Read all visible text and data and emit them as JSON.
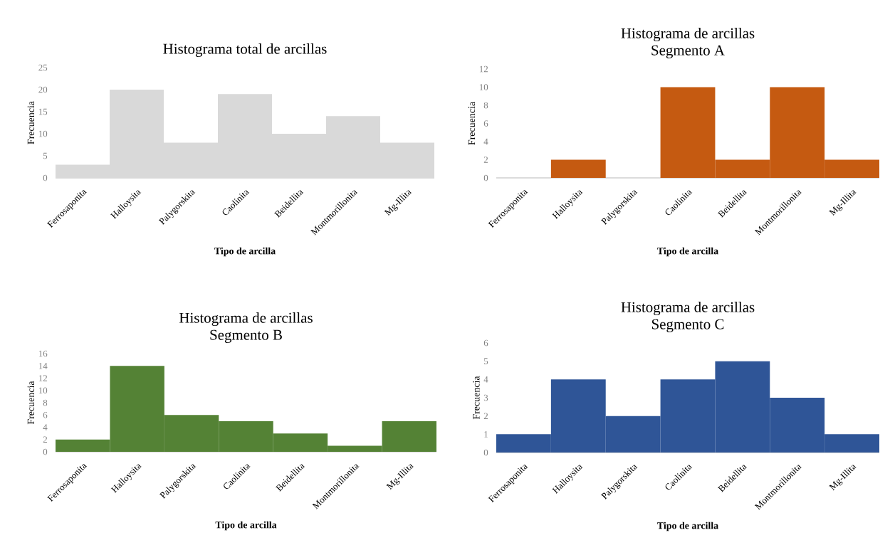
{
  "chart_data": [
    {
      "type": "bar",
      "title": "Histograma total de arcillas",
      "xlabel": "Tipo de arcilla",
      "ylabel": "Frecuencia",
      "categories": [
        "Ferrosaponita",
        "Halloysita",
        "Palygorskita",
        "Caolinita",
        "Beidellita",
        "Montmorillonita",
        "Mg-Illita"
      ],
      "values": [
        3,
        20,
        8,
        19,
        10,
        14,
        8
      ],
      "color": "#d9d9d9",
      "ylim": [
        0,
        25
      ],
      "yticks": [
        0,
        5,
        10,
        15,
        20,
        25
      ]
    },
    {
      "type": "bar",
      "title": "Histograma de arcillas",
      "subtitle": "Segmento A",
      "xlabel": "Tipo de arcilla",
      "ylabel": "Frecuencia",
      "categories": [
        "Ferrosaponita",
        "Halloysita",
        "Palygorskita",
        "Caolinita",
        "Beidellita",
        "Montmorillonita",
        "Mg-Illita"
      ],
      "values": [
        0,
        2,
        0,
        10,
        2,
        10,
        2
      ],
      "color": "#c55a11",
      "ylim": [
        0,
        12
      ],
      "yticks": [
        0,
        2,
        4,
        6,
        8,
        10,
        12
      ]
    },
    {
      "type": "bar",
      "title": "Histograma de arcillas",
      "subtitle": "Segmento B",
      "xlabel": "Tipo de arcilla",
      "ylabel": "Frecuencia",
      "categories": [
        "Ferrosaponita",
        "Halloysita",
        "Palygorskita",
        "Caolinita",
        "Beidellita",
        "Montmorillonita",
        "Mg-Illita"
      ],
      "values": [
        2,
        14,
        6,
        5,
        3,
        1,
        5
      ],
      "color": "#548235",
      "ylim": [
        0,
        16
      ],
      "yticks": [
        0,
        2,
        4,
        6,
        8,
        10,
        12,
        14,
        16
      ]
    },
    {
      "type": "bar",
      "title": "Histograma de arcillas",
      "subtitle": "Segmento C",
      "xlabel": "Tipo de arcilla",
      "ylabel": "Frecuencia",
      "categories": [
        "Ferrosaponita",
        "Halloysita",
        "Palygorskita",
        "Caolinita",
        "Beidellita",
        "Montmorillonita",
        "Mg-Illita"
      ],
      "values": [
        1,
        4,
        2,
        4,
        5,
        3,
        1
      ],
      "color": "#2f5597",
      "ylim": [
        0,
        6
      ],
      "yticks": [
        0,
        1,
        2,
        3,
        4,
        5,
        6
      ]
    }
  ]
}
